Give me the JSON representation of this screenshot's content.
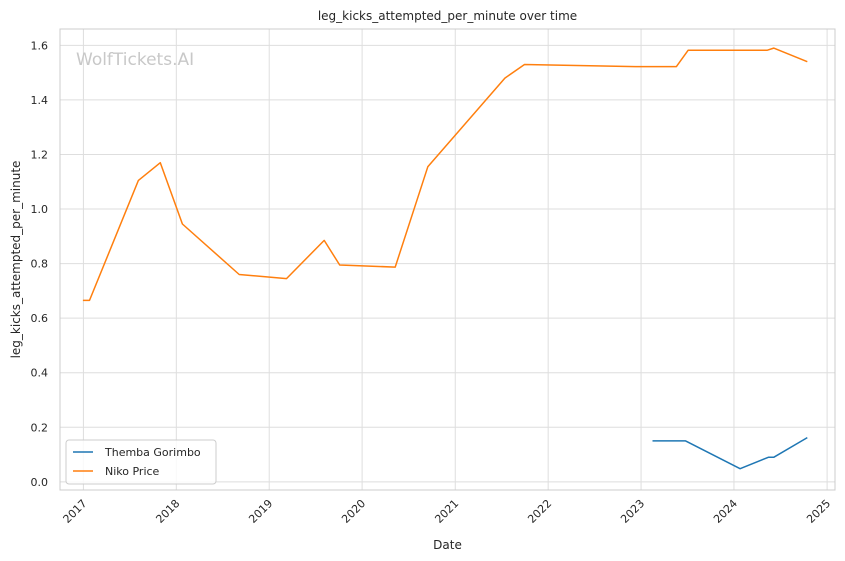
{
  "chart_data": {
    "type": "line",
    "title": "leg_kicks_attempted_per_minute over time",
    "xlabel": "Date",
    "ylabel": "leg_kicks_attempted_per_minute",
    "watermark": "WolfTickets.AI",
    "xlim": [
      "2016-10-01",
      "2025-02-01"
    ],
    "ylim": [
      -0.03,
      1.66
    ],
    "x_ticks": [
      "2017",
      "2018",
      "2019",
      "2020",
      "2021",
      "2022",
      "2023",
      "2024",
      "2025"
    ],
    "y_ticks": [
      "0.0",
      "0.2",
      "0.4",
      "0.6",
      "0.8",
      "1.0",
      "1.2",
      "1.4",
      "1.6"
    ],
    "y_tick_values": [
      0,
      0.2,
      0.4,
      0.6,
      0.8,
      1.0,
      1.2,
      1.4,
      1.6
    ],
    "grid": true,
    "legend_position": "lower-left",
    "series": [
      {
        "name": "Themba Gorimbo",
        "color": "#1f77b4",
        "points": [
          {
            "x": "2023-02-15",
            "y": 0.15
          },
          {
            "x": "2023-06-25",
            "y": 0.15
          },
          {
            "x": "2024-01-25",
            "y": 0.048
          },
          {
            "x": "2024-05-15",
            "y": 0.09
          },
          {
            "x": "2024-06-05",
            "y": 0.09
          },
          {
            "x": "2024-10-15",
            "y": 0.162
          }
        ]
      },
      {
        "name": "Niko Price",
        "color": "#ff7f0e",
        "points": [
          {
            "x": "2016-12-30",
            "y": 0.665
          },
          {
            "x": "2017-01-25",
            "y": 0.665
          },
          {
            "x": "2017-08-05",
            "y": 1.105
          },
          {
            "x": "2017-10-30",
            "y": 1.17
          },
          {
            "x": "2018-01-25",
            "y": 0.945
          },
          {
            "x": "2018-09-05",
            "y": 0.76
          },
          {
            "x": "2019-03-10",
            "y": 0.745
          },
          {
            "x": "2019-08-05",
            "y": 0.885
          },
          {
            "x": "2019-10-05",
            "y": 0.795
          },
          {
            "x": "2020-05-10",
            "y": 0.787
          },
          {
            "x": "2020-09-15",
            "y": 1.155
          },
          {
            "x": "2021-07-15",
            "y": 1.48
          },
          {
            "x": "2021-09-30",
            "y": 1.53
          },
          {
            "x": "2022-12-10",
            "y": 1.522
          },
          {
            "x": "2023-05-20",
            "y": 1.522
          },
          {
            "x": "2023-07-05",
            "y": 1.582
          },
          {
            "x": "2024-05-10",
            "y": 1.582
          },
          {
            "x": "2024-06-05",
            "y": 1.59
          },
          {
            "x": "2024-10-15",
            "y": 1.54
          }
        ]
      }
    ]
  }
}
